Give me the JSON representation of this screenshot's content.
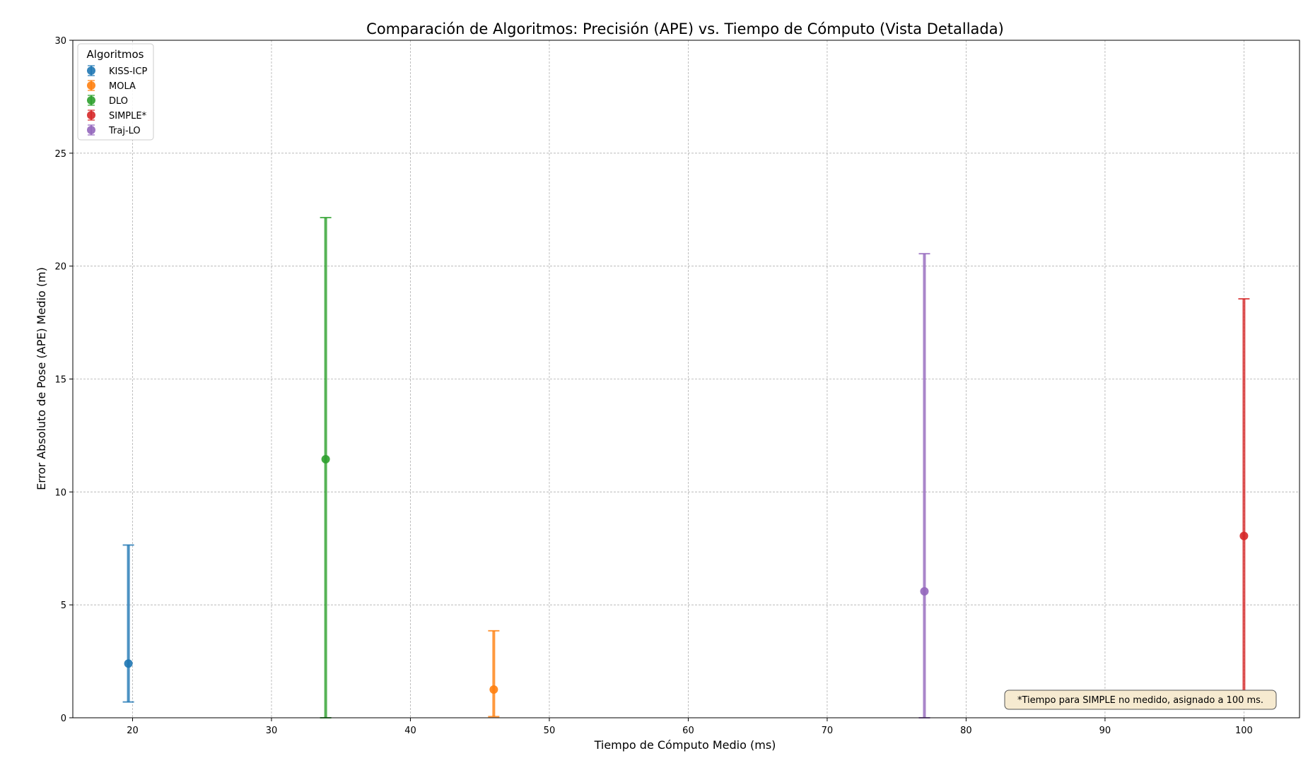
{
  "chart_data": {
    "type": "scatter",
    "title": "Comparación de Algoritmos: Precisión (APE) vs. Tiempo de Cómputo (Vista Detallada)",
    "xlabel": "Tiempo de Cómputo Medio (ms)",
    "ylabel": "Error Absoluto de Pose (APE) Medio (m)",
    "xlim": [
      15.7,
      104
    ],
    "ylim": [
      0,
      30
    ],
    "xticks": [
      20,
      30,
      40,
      50,
      60,
      70,
      80,
      90,
      100
    ],
    "yticks": [
      0,
      5,
      10,
      15,
      20,
      25,
      30
    ],
    "grid": true,
    "legend": {
      "title": "Algoritmos",
      "position": "top-left"
    },
    "series": [
      {
        "name": "KISS-ICP",
        "x": 19.7,
        "y": 2.4,
        "yerr_low": 0.7,
        "yerr_high": 7.65,
        "color": "#1f77b4"
      },
      {
        "name": "MOLA",
        "x": 46.0,
        "y": 1.25,
        "yerr_low": 0.05,
        "yerr_high": 3.85,
        "color": "#ff7f0e"
      },
      {
        "name": "DLO",
        "x": 33.9,
        "y": 11.45,
        "yerr_low": 0,
        "yerr_high": 22.15,
        "color": "#2ca02c"
      },
      {
        "name": "SIMPLE*",
        "x": 100.0,
        "y": 8.05,
        "yerr_low": 1.1,
        "yerr_high": 18.55,
        "color": "#d62728"
      },
      {
        "name": "Traj-LO",
        "x": 77.0,
        "y": 5.6,
        "yerr_low": 0,
        "yerr_high": 20.55,
        "color": "#9467bd"
      }
    ],
    "annotation": "*Tiempo para SIMPLE no medido, asignado a 100 ms."
  }
}
